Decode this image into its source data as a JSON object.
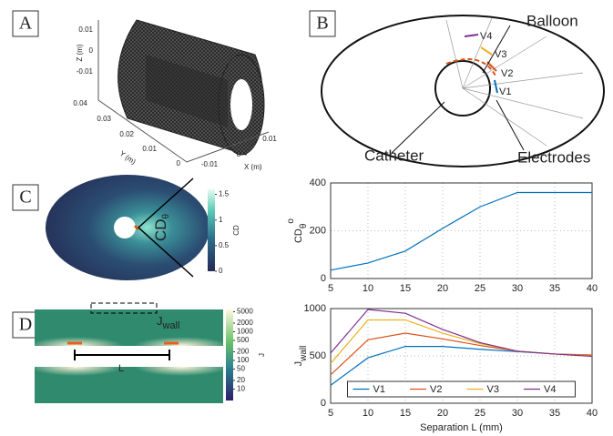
{
  "panels": [
    "A",
    "B",
    "C",
    "D"
  ],
  "panel_a": {
    "z_label": "Z (m)",
    "y_label": "Y (m)",
    "x_label": "X (m)",
    "z_ticks": [
      0.01,
      0,
      -0.01
    ],
    "y_ticks": [
      0.04,
      0.03,
      0.02,
      0.01,
      0
    ],
    "x_ticks": [
      -0.01,
      0,
      0.01
    ]
  },
  "panel_b": {
    "balloon": "Balloon",
    "catheter": "Catheter",
    "electrodes": "Electrodes",
    "v_labels": [
      "V1",
      "V2",
      "V3",
      "V4"
    ]
  },
  "panel_c": {
    "annotation": "CD",
    "annotation_sub": "θ",
    "colorbar_label": "CD",
    "colorbar_lim": [
      0,
      1.6
    ],
    "colorbar_ticks": [
      0,
      0.5,
      1,
      1.5
    ]
  },
  "panel_d": {
    "annotation": "J",
    "annotation_sub": "wall",
    "separation": "L",
    "colorbar_label": "J",
    "colorbar_log": true,
    "colorbar_lim": [
      4,
      6000
    ],
    "colorbar_ticks": [
      5000,
      2000,
      1000,
      500,
      200,
      100,
      50,
      20,
      10
    ]
  },
  "chart_data": [
    {
      "type": "line",
      "ylabel": "CD",
      "ylabel_sub": "θ",
      "ylabel_sup": "o",
      "x": [
        5,
        10,
        15,
        20,
        25,
        30,
        35,
        40
      ],
      "xlim": [
        5,
        40
      ],
      "xticks": [
        5,
        10,
        15,
        20,
        25,
        30,
        35,
        40
      ],
      "ylim": [
        0,
        400
      ],
      "yticks": [
        0,
        200,
        400
      ],
      "grid": true,
      "series": [
        {
          "color": "#0072bd",
          "values": [
            35,
            65,
            115,
            210,
            300,
            360,
            360,
            360
          ]
        }
      ]
    },
    {
      "type": "line",
      "ylabel": "J",
      "ylabel_sub": "wall",
      "xlabel": "Separation L (mm)",
      "x": [
        5,
        10,
        15,
        20,
        25,
        30,
        35,
        40
      ],
      "xlim": [
        5,
        40
      ],
      "xticks": [
        5,
        10,
        15,
        20,
        25,
        30,
        35,
        40
      ],
      "ylim": [
        0,
        1000
      ],
      "yticks": [
        0,
        500,
        1000
      ],
      "grid": true,
      "legend": "bottom",
      "series": [
        {
          "name": "V1",
          "color": "#0072bd",
          "values": [
            190,
            480,
            600,
            600,
            570,
            545,
            520,
            505
          ]
        },
        {
          "name": "V2",
          "color": "#d95319",
          "values": [
            300,
            670,
            740,
            680,
            610,
            550,
            520,
            510
          ]
        },
        {
          "name": "V3",
          "color": "#edb120",
          "values": [
            420,
            880,
            880,
            740,
            630,
            550,
            520,
            500
          ]
        },
        {
          "name": "V4",
          "color": "#7e2f8e",
          "values": [
            530,
            990,
            950,
            780,
            640,
            550,
            520,
            495
          ]
        }
      ]
    }
  ]
}
